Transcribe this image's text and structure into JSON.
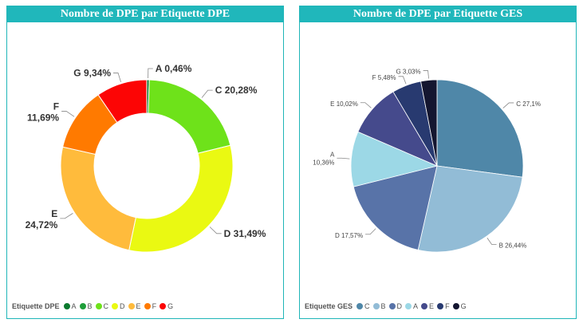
{
  "chart_data": [
    {
      "type": "pie",
      "variant": "donut",
      "title": "Nombre de DPE par Etiquette DPE",
      "legend_title": "Etiquette DPE",
      "legend_placement": "bottom-left",
      "slices": [
        {
          "label": "A",
          "value": 0.46,
          "value_text": "0,46%",
          "color": "#0b7a2e"
        },
        {
          "label": "B",
          "value": 0.0,
          "value_text": "",
          "color": "#1f9e3a"
        },
        {
          "label": "C",
          "value": 20.28,
          "value_text": "20,28%",
          "color": "#6ee21a"
        },
        {
          "label": "D",
          "value": 31.49,
          "value_text": "31,49%",
          "color": "#eaf912"
        },
        {
          "label": "E",
          "value": 24.72,
          "value_text": "24,72%",
          "color": "#ffbb3c"
        },
        {
          "label": "F",
          "value": 11.69,
          "value_text": "11,69%",
          "color": "#ff7a00"
        },
        {
          "label": "G",
          "value": 9.34,
          "value_text": "9,34%",
          "color": "#fc0505"
        }
      ],
      "legend": [
        "A",
        "B",
        "C",
        "D",
        "E",
        "F",
        "G"
      ]
    },
    {
      "type": "pie",
      "title": "Nombre de DPE par Etiquette GES",
      "legend_title": "Etiquette GES",
      "legend_placement": "bottom-left",
      "slices": [
        {
          "label": "C",
          "value": 27.1,
          "value_text": "27,1%",
          "color": "#4f87a8"
        },
        {
          "label": "B",
          "value": 26.44,
          "value_text": "26,44%",
          "color": "#92bcd6"
        },
        {
          "label": "D",
          "value": 17.57,
          "value_text": "17,57%",
          "color": "#5873a8"
        },
        {
          "label": "A",
          "value": 10.36,
          "value_text": "10,36%",
          "color": "#9cd8e6"
        },
        {
          "label": "E",
          "value": 10.02,
          "value_text": "10,02%",
          "color": "#454a8c"
        },
        {
          "label": "F",
          "value": 5.48,
          "value_text": "5,48%",
          "color": "#283a70"
        },
        {
          "label": "G",
          "value": 3.03,
          "value_text": "3,03%",
          "color": "#141630"
        }
      ],
      "legend": [
        "C",
        "B",
        "D",
        "A",
        "E",
        "F",
        "G"
      ]
    }
  ]
}
